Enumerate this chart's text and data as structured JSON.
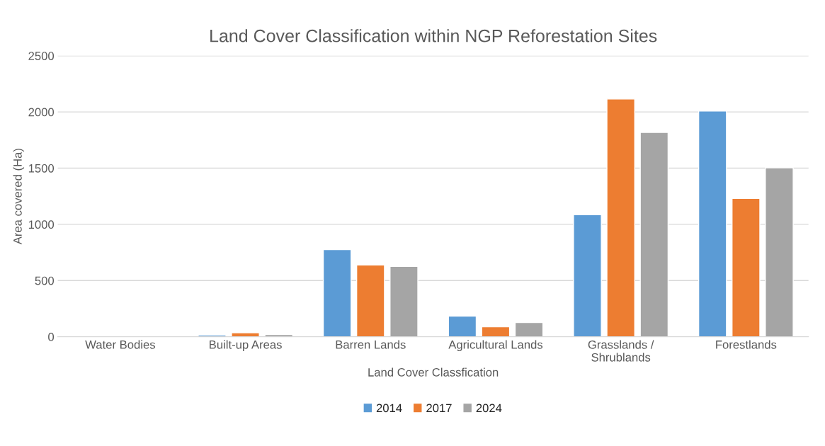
{
  "chart_data": {
    "type": "bar",
    "title": "Land Cover Classification within NGP Reforestation Sites",
    "xlabel": "Land Cover Classfication",
    "ylabel": "Area covered (Ha)",
    "categories": [
      "Water Bodies",
      "Built-up Areas",
      "Barren Lands",
      "Agricultural Lands",
      "Grasslands /\nShrublands",
      "Forestlands"
    ],
    "series": [
      {
        "name": "2014",
        "color": "#5b9bd5",
        "values": [
          null,
          15,
          776,
          183,
          1086,
          2008
        ]
      },
      {
        "name": "2017",
        "color": "#ed7d31",
        "values": [
          null,
          35,
          638,
          88,
          2115,
          1230
        ]
      },
      {
        "name": "2024",
        "color": "#a5a5a5",
        "values": [
          null,
          20,
          625,
          126,
          1818,
          1503
        ]
      }
    ],
    "ylim": [
      0,
      2500
    ],
    "yticks": [
      0,
      500,
      1000,
      1500,
      2000,
      2500
    ],
    "grid": "y",
    "legend": "bottom"
  }
}
